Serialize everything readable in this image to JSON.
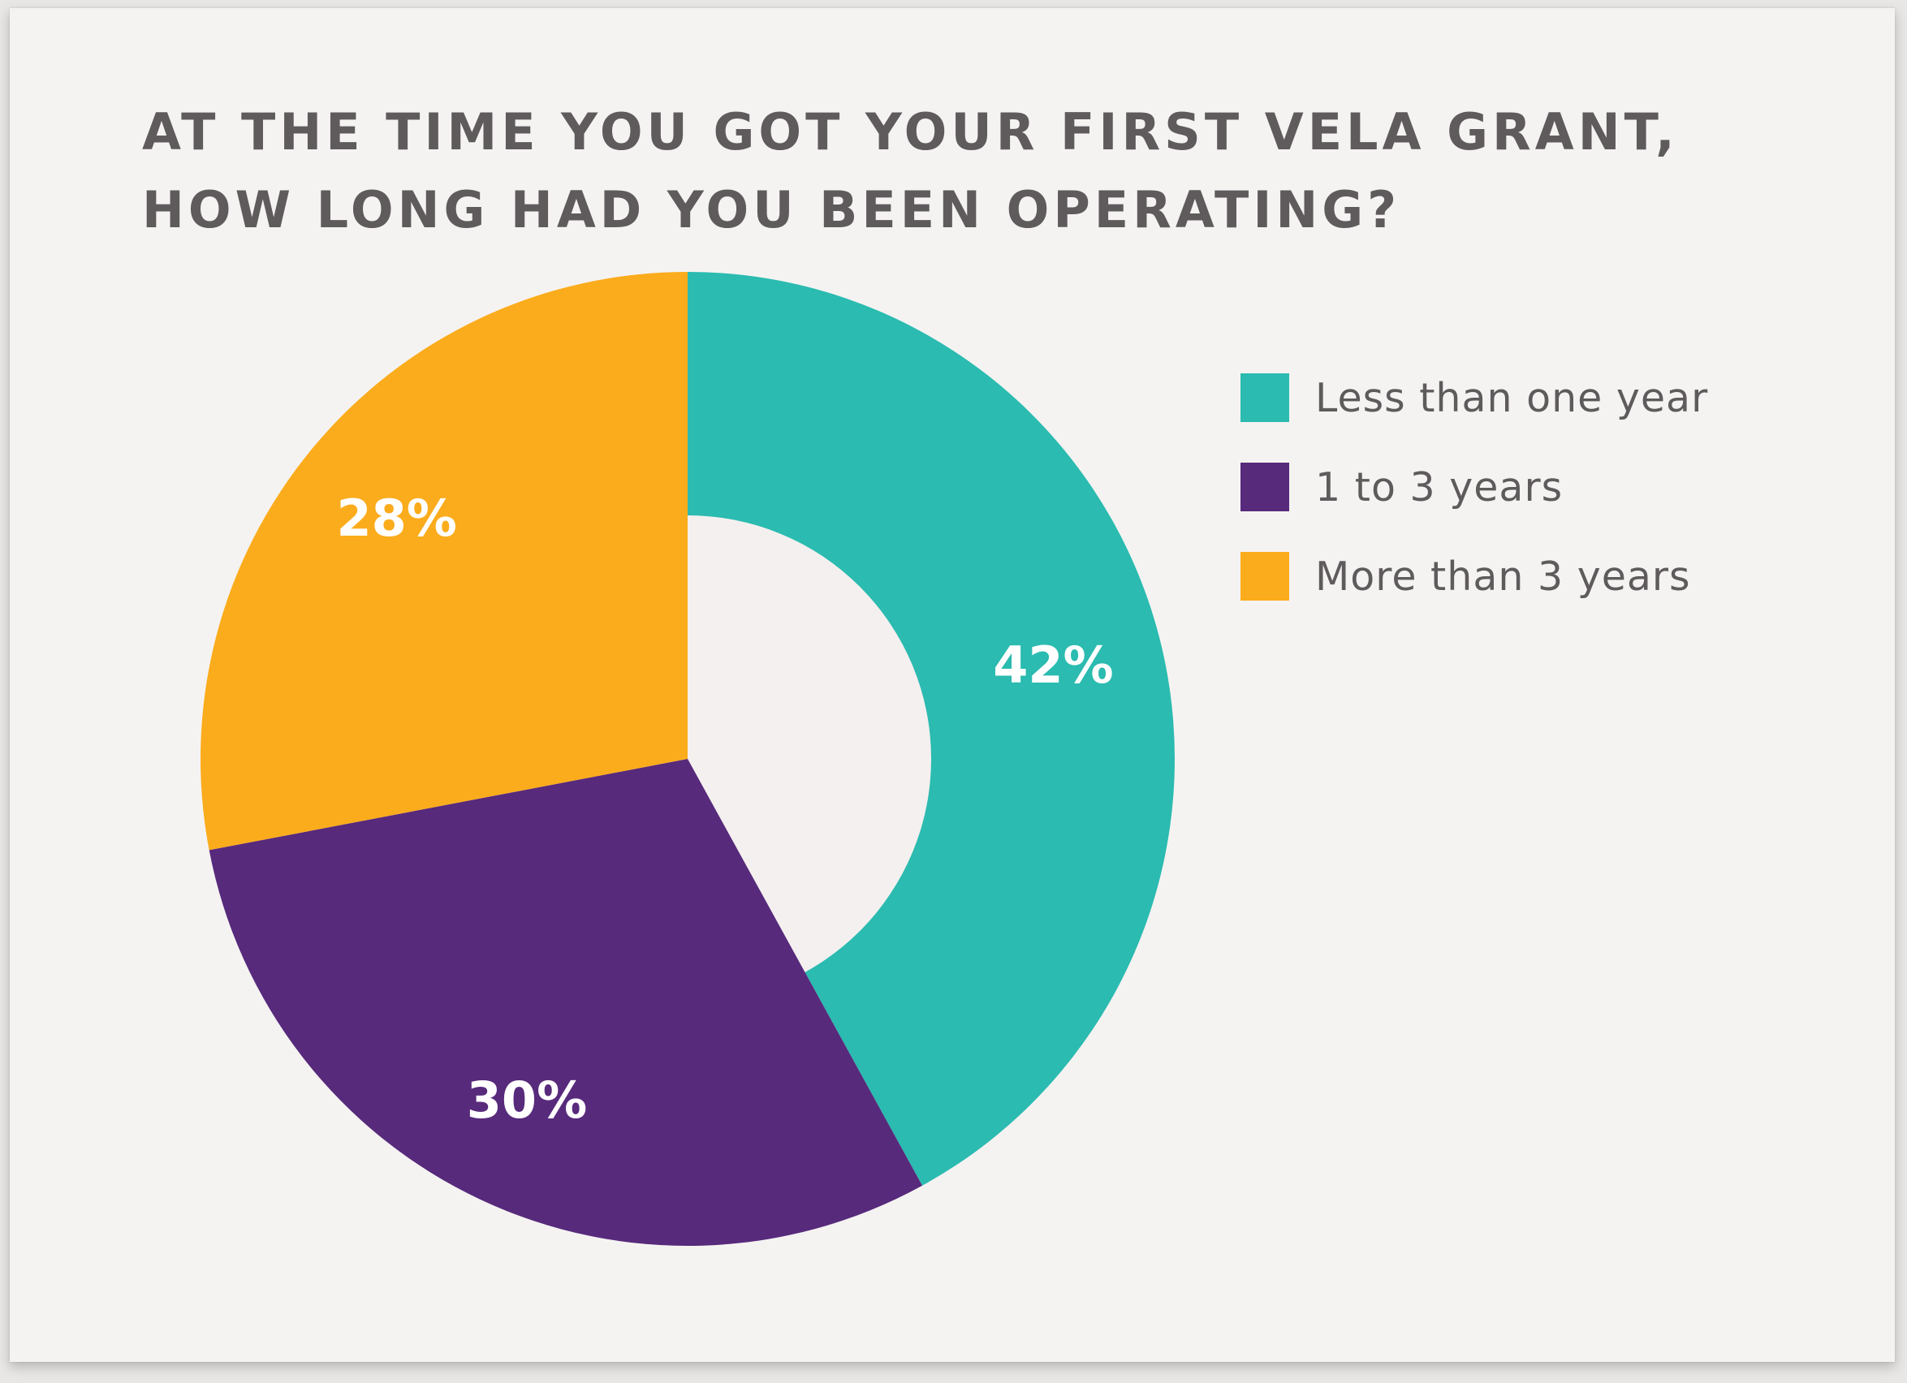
{
  "chart_data": {
    "type": "pie",
    "variant": "donut",
    "title_lines": [
      "AT THE TIME YOU GOT YOUR FIRST VELA GRANT,",
      "HOW LONG HAD YOU BEEN OPERATING?"
    ],
    "slices": [
      {
        "label": "Less than one year",
        "value": 42,
        "display": "42%",
        "color": "#2bbbb0"
      },
      {
        "label": "1 to 3 years",
        "value": 30,
        "display": "30%",
        "color": "#572a7c"
      },
      {
        "label": "More than 3 years",
        "value": 28,
        "display": "28%",
        "color": "#fbac1c"
      }
    ],
    "hole_color": "#f4f0ef",
    "legend_position": "right"
  }
}
